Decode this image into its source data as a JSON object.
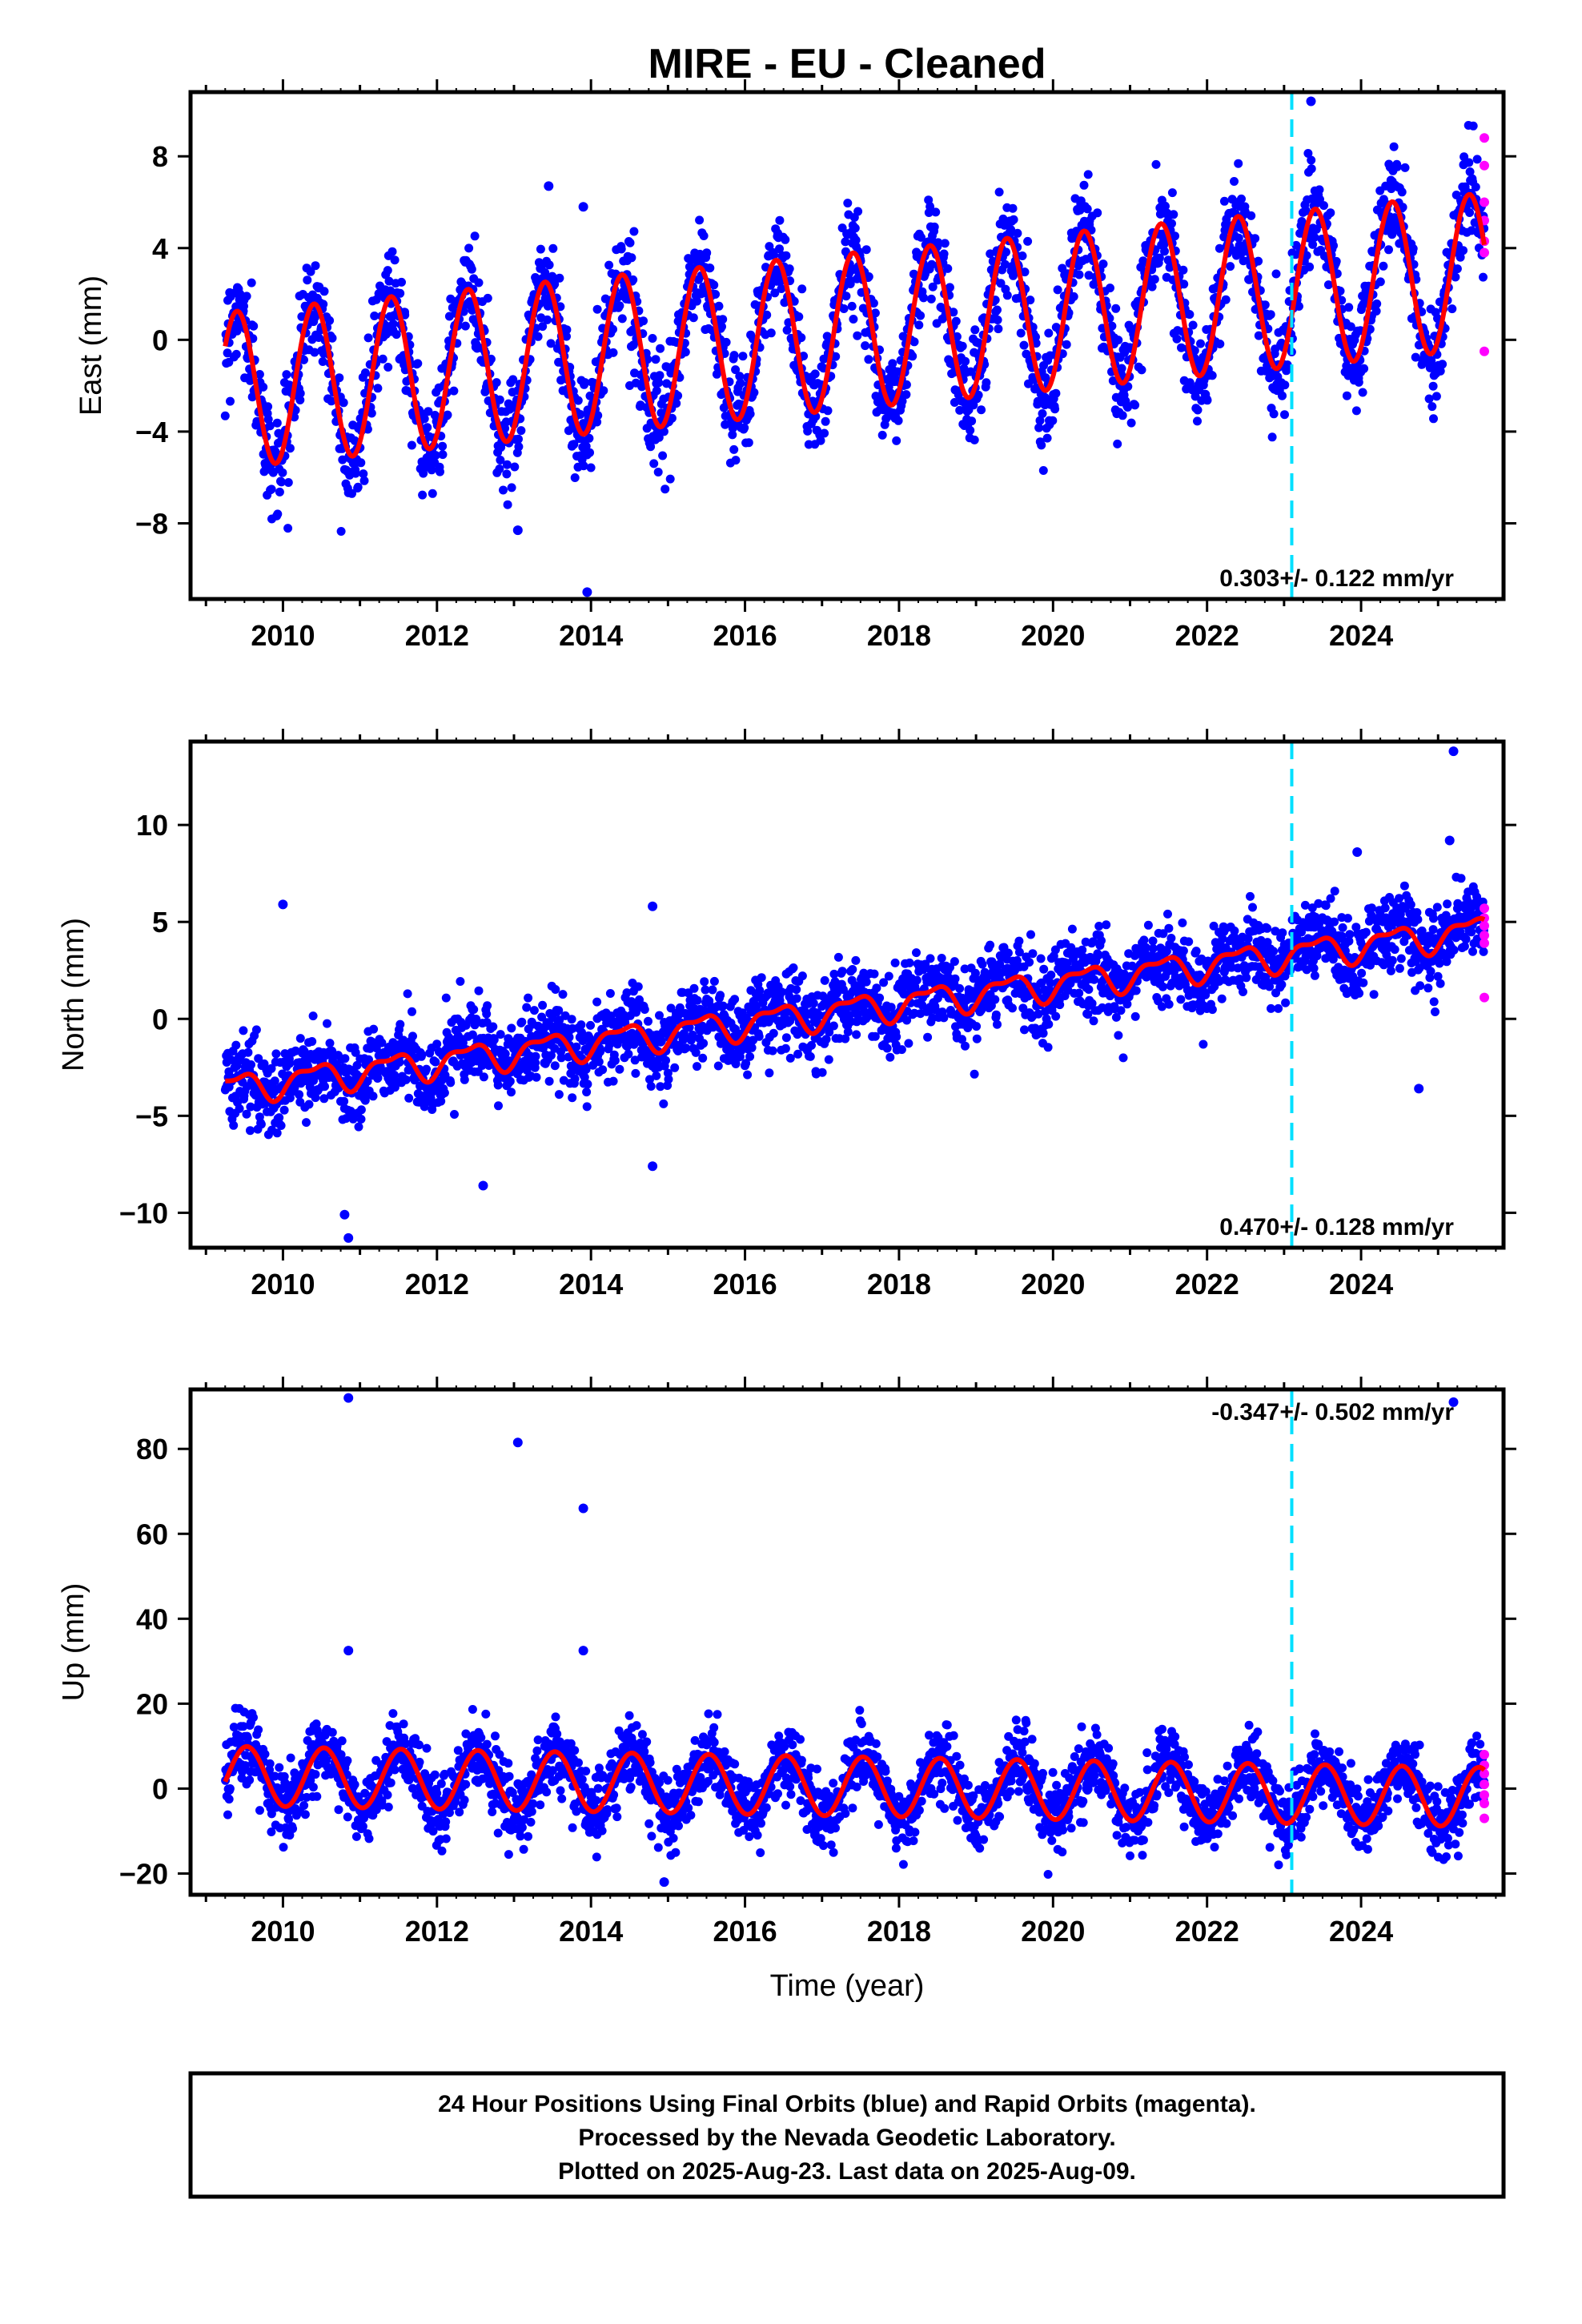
{
  "chart_data": {
    "type": "scatter",
    "title": "MIRE  - EU - Cleaned",
    "xlabel": "Time (year)",
    "xlim": [
      2008.8,
      2025.85
    ],
    "x_ticks": [
      "2010",
      "2012",
      "2014",
      "2016",
      "2018",
      "2020",
      "2022",
      "2024"
    ],
    "break_line_year": 2023.1,
    "data_start_year": 2009.25,
    "data_end_year": 2025.6,
    "panels": [
      {
        "name": "east",
        "ylabel": "East (mm)",
        "ylim": [
          -11.3,
          10.8
        ],
        "y_ticks": [
          "8",
          "4",
          "0",
          "−4",
          "−8"
        ],
        "y_tick_values": [
          8,
          4,
          0,
          -4,
          -8
        ],
        "rate_label": "0.303+/- 0.122 mm/yr",
        "rate_position": "bottom-right",
        "trend_start": -2.2,
        "trend_end": 3.0,
        "seasonal_amplitude": 3.4,
        "scatter_sd": 1.1,
        "outliers": [
          [
            2013.05,
            -8.3
          ],
          [
            2013.45,
            6.7
          ],
          [
            2013.9,
            5.8
          ],
          [
            2013.95,
            -11.0
          ],
          [
            2023.35,
            10.4
          ]
        ],
        "rapid_values": [
          8.8,
          7.6,
          6.0,
          5.2,
          4.3,
          3.8,
          -0.5
        ]
      },
      {
        "name": "north",
        "ylabel": "North (mm)",
        "ylim": [
          -11.8,
          14.3
        ],
        "y_ticks": [
          "10",
          "5",
          "0",
          "−5",
          "−10"
        ],
        "y_tick_values": [
          10,
          5,
          0,
          -5,
          -10
        ],
        "rate_label": "0.470+/- 0.128 mm/yr",
        "rate_position": "bottom-right",
        "trend_start": -3.6,
        "trend_end": 4.6,
        "seasonal_amplitude": 0.7,
        "scatter_sd": 1.0,
        "outliers": [
          [
            2010.0,
            5.9
          ],
          [
            2010.8,
            -10.1
          ],
          [
            2010.85,
            -11.3
          ],
          [
            2014.8,
            5.8
          ],
          [
            2012.6,
            -8.6
          ],
          [
            2014.8,
            -7.6
          ],
          [
            2024.75,
            -3.6
          ],
          [
            2025.2,
            13.8
          ],
          [
            2025.15,
            9.2
          ],
          [
            2023.95,
            8.6
          ]
        ],
        "rapid_values": [
          5.7,
          5.2,
          4.8,
          4.3,
          3.9,
          1.1
        ]
      },
      {
        "name": "up",
        "ylabel": "Up (mm)",
        "ylim": [
          -25,
          94
        ],
        "y_ticks": [
          "80",
          "60",
          "40",
          "20",
          "0",
          "−20"
        ],
        "y_tick_values": [
          80,
          60,
          40,
          20,
          0,
          -20
        ],
        "rate_label": "-0.347+/- 0.502 mm/yr",
        "rate_position": "top-right",
        "trend_start": 3.0,
        "trend_end": -2.0,
        "seasonal_amplitude": 7.0,
        "scatter_sd": 4.0,
        "outliers": [
          [
            2010.85,
            92
          ],
          [
            2010.85,
            32.5
          ],
          [
            2013.05,
            81.5
          ],
          [
            2013.9,
            66
          ],
          [
            2013.9,
            32.5
          ],
          [
            2014.95,
            -22
          ],
          [
            2025.2,
            91
          ]
        ],
        "rapid_values": [
          8.0,
          5.5,
          3.5,
          1.0,
          -1.5,
          -3.5,
          -7.0
        ]
      }
    ],
    "legend_text": [
      "24 Hour Positions Using Final Orbits (blue) and Rapid Orbits (magenta).",
      "Processed by the Nevada Geodetic Laboratory.",
      "Plotted on 2025-Aug-23. Last data on 2025-Aug-09."
    ],
    "colors": {
      "final_orbits": "#0000ff",
      "rapid_orbits": "#ff00ff",
      "fit": "#ff0000",
      "break_line": "#00e0ff",
      "frame": "#000000"
    }
  }
}
